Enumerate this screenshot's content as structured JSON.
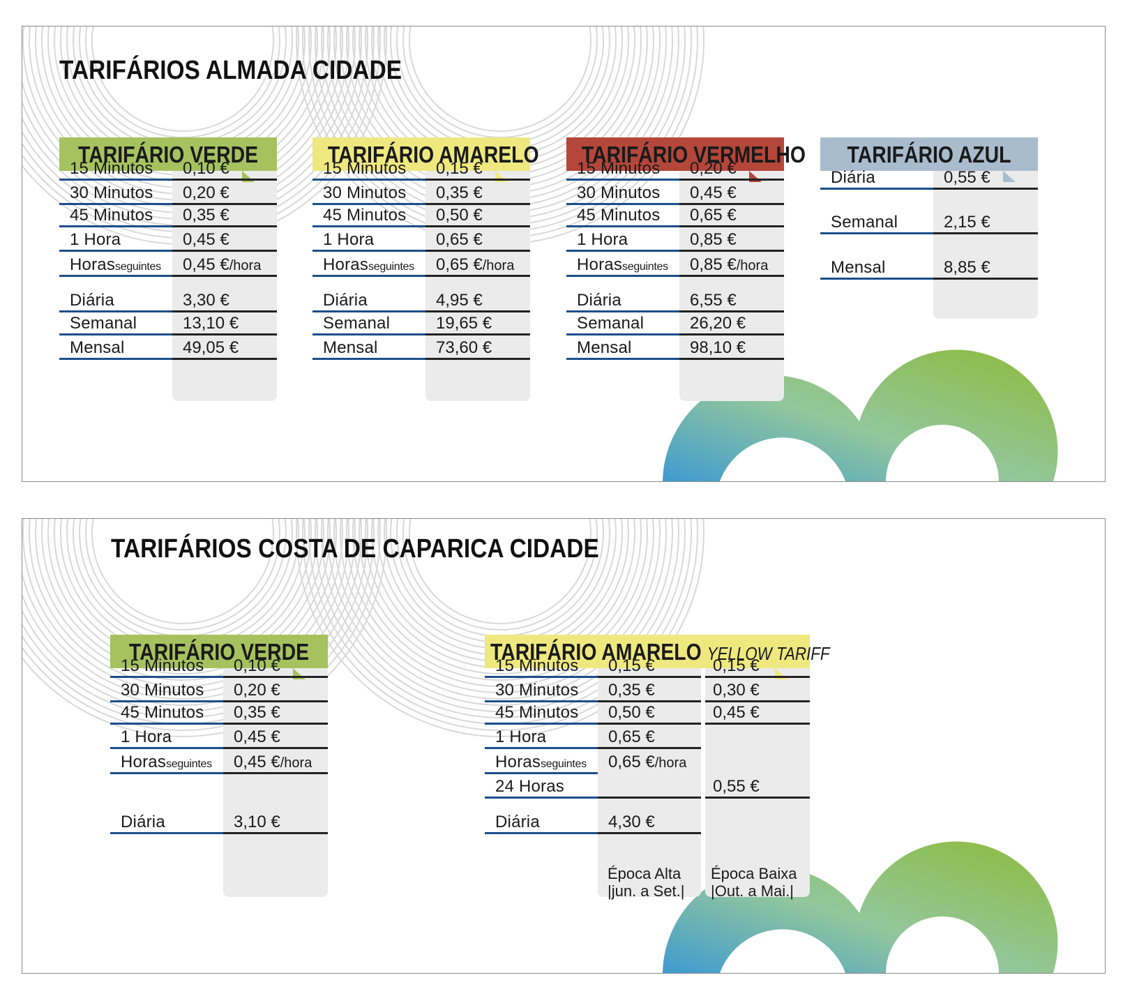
{
  "panels": [
    {
      "title": "TARIFÁRIOS ALMADA CIDADE",
      "cards": [
        {
          "title": "TARIFÁRIO VERDE",
          "color": "#a6c25f",
          "rows": [
            {
              "label": "15 Minutos",
              "value": "0,10 €"
            },
            {
              "label": "30 Minutos",
              "value": "0,20 €"
            },
            {
              "label": "45 Minutos",
              "value": "0,35 €"
            },
            {
              "label": "1 Hora",
              "value": "0,45 €"
            },
            {
              "label": "Horas",
              "label_suffix": "seguintes",
              "value": "0,45 €",
              "value_suffix": "/hora"
            },
            {
              "label": "Diária",
              "value": "3,30 €"
            },
            {
              "label": "Semanal",
              "value": "13,10 €"
            },
            {
              "label": "Mensal",
              "value": "49,05 €"
            }
          ]
        },
        {
          "title": "TARIFÁRIO AMARELO",
          "color": "#eee87f",
          "rows": [
            {
              "label": "15 Minutos",
              "value": "0,15 €"
            },
            {
              "label": "30 Minutos",
              "value": "0,35 €"
            },
            {
              "label": "45 Minutos",
              "value": "0,50 €"
            },
            {
              "label": "1 Hora",
              "value": "0,65 €"
            },
            {
              "label": "Horas",
              "label_suffix": "seguintes",
              "value": "0,65 €",
              "value_suffix": "/hora"
            },
            {
              "label": "Diária",
              "value": "4,95 €"
            },
            {
              "label": "Semanal",
              "value": "19,65 €"
            },
            {
              "label": "Mensal",
              "value": "73,60 €"
            }
          ]
        },
        {
          "title": "TARIFÁRIO VERMELHO",
          "color": "#b5473a",
          "rows": [
            {
              "label": "15 Minutos",
              "value": "0,20 €"
            },
            {
              "label": "30 Minutos",
              "value": "0,45 €"
            },
            {
              "label": "45 Minutos",
              "value": "0,65 €"
            },
            {
              "label": "1 Hora",
              "value": "0,85 €"
            },
            {
              "label": "Horas",
              "label_suffix": "seguintes",
              "value": "0,85 €",
              "value_suffix": "/hora"
            },
            {
              "label": "Diária",
              "value": "6,55 €"
            },
            {
              "label": "Semanal",
              "value": "26,20 €"
            },
            {
              "label": "Mensal",
              "value": "98,10 €"
            }
          ]
        },
        {
          "title": "TARIFÁRIO AZUL",
          "color": "#a8bccd",
          "rows": [
            {
              "label": "Diária",
              "value": "0,55 €"
            },
            {
              "label": "Semanal",
              "value": "2,15 €"
            },
            {
              "label": "Mensal",
              "value": "8,85 €"
            }
          ]
        }
      ]
    },
    {
      "title": "TARIFÁRIOS COSTA DE CAPARICA CIDADE",
      "cards": [
        {
          "title": "TARIFÁRIO VERDE",
          "color": "#a6c25f",
          "rows": [
            {
              "label": "15 Minutos",
              "value": "0,10 €"
            },
            {
              "label": "30 Minutos",
              "value": "0,20 €"
            },
            {
              "label": "45 Minutos",
              "value": "0,35 €"
            },
            {
              "label": "1 Hora",
              "value": "0,45 €"
            },
            {
              "label": "Horas",
              "label_suffix": "seguintes",
              "value": "0,45 €",
              "value_suffix": "/hora"
            },
            {
              "label": "Diária",
              "value": "3,10 €"
            }
          ]
        },
        {
          "title": "TARIFÁRIO AMARELO",
          "subtitle": "YELLOW TARIFF",
          "color": "#eee87f",
          "rows": [
            {
              "label": "15 Minutos",
              "value": "0,15 €",
              "value2": "0,15 €"
            },
            {
              "label": "30 Minutos",
              "value": "0,35 €",
              "value2": "0,30 €"
            },
            {
              "label": "45 Minutos",
              "value": "0,50 €",
              "value2": "0,45 €"
            },
            {
              "label": "1 Hora",
              "value": "0,65 €",
              "value2": ""
            },
            {
              "label": "Horas",
              "label_suffix": "seguintes",
              "value": "0,65 €",
              "value_suffix": "/hora",
              "value2": ""
            },
            {
              "label": "24 Horas",
              "value": "",
              "value2": "0,55 €"
            },
            {
              "label": "Diária",
              "value": "4,30 €",
              "value2": ""
            }
          ],
          "season_high": [
            "Época Alta",
            "|jun. a Set.|"
          ],
          "season_low": [
            "Época Baixa",
            "|Out. a Mai.|"
          ]
        }
      ]
    }
  ]
}
